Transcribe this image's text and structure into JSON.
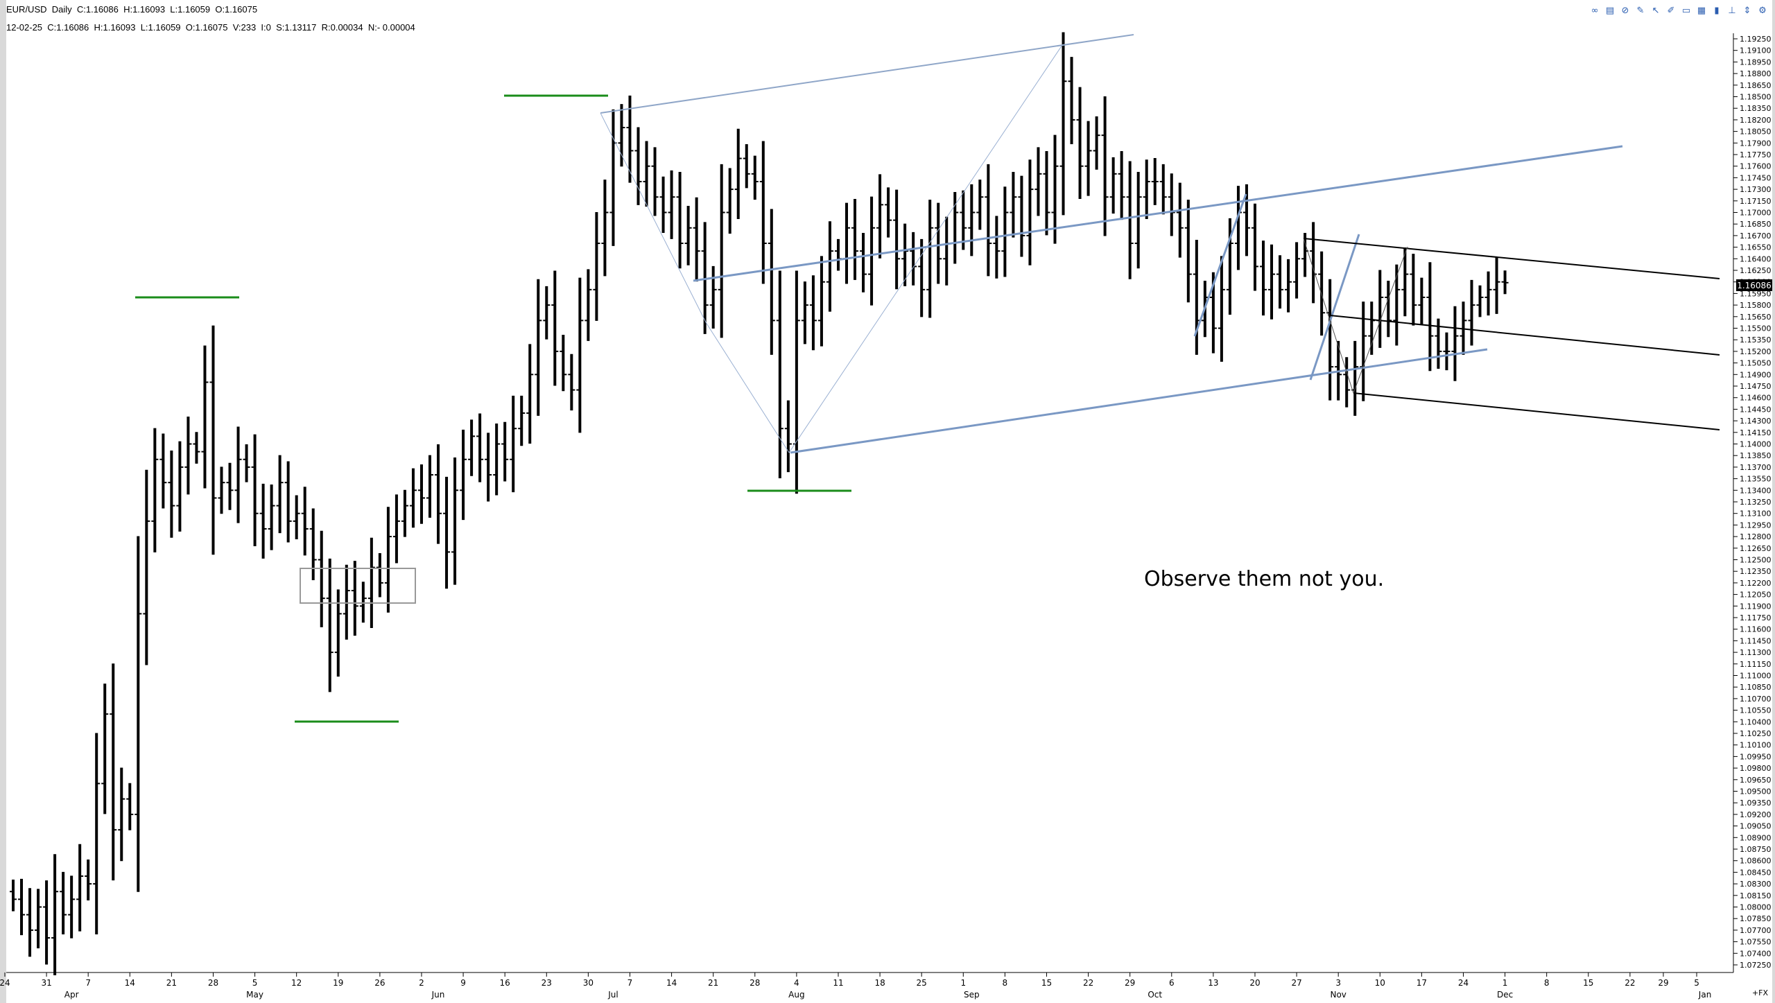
{
  "header": {
    "line1": "EUR/USD  Daily  C:1.16086  H:1.16093  L:1.16059  O:1.16075",
    "line2": "12-02-25  C:1.16086  H:1.16093  L:1.16059  O:1.16075  V:233  I:0  S:1.13117  R:0.00034  N:- 0.00004"
  },
  "toolbar": {
    "icons": [
      "link-icon",
      "chart-icon",
      "cancel-icon",
      "drawing-icon",
      "cursor-icon",
      "pen-icon",
      "box-icon",
      "grid-icon",
      "trash-icon",
      "pin-icon",
      "arrows-icon",
      "settings-icon"
    ]
  },
  "annotation": {
    "text": "Observe them not you."
  },
  "last_price_label": "1.16086",
  "fx_label": "+FX",
  "chart_data": {
    "type": "ohlc",
    "symbol": "EUR/USD",
    "timeframe": "Daily",
    "ylim": [
      1.0725,
      1.1925
    ],
    "y_tick_labels": [
      "1.19250",
      "1.19100",
      "1.18950",
      "1.18800",
      "1.18650",
      "1.18500",
      "1.18350",
      "1.18200",
      "1.18050",
      "1.17900",
      "1.17750",
      "1.17600",
      "1.17450",
      "1.17300",
      "1.17150",
      "1.17000",
      "1.16850",
      "1.16700",
      "1.16550",
      "1.16400",
      "1.16250",
      "1.16100",
      "1.15950",
      "1.15800",
      "1.15650",
      "1.15500",
      "1.15350",
      "1.15200",
      "1.15050",
      "1.14900",
      "1.14750",
      "1.14600",
      "1.14450",
      "1.14300",
      "1.14150",
      "1.14000",
      "1.13850",
      "1.13700",
      "1.13550",
      "1.13400",
      "1.13250",
      "1.13100",
      "1.12950",
      "1.12800",
      "1.12650",
      "1.12500",
      "1.12350",
      "1.12200",
      "1.12050",
      "1.11900",
      "1.11750",
      "1.11600",
      "1.11450",
      "1.11300",
      "1.11150",
      "1.11000",
      "1.10850",
      "1.10700",
      "1.10550",
      "1.10400",
      "1.10250",
      "1.10100",
      "1.09950",
      "1.09800",
      "1.09650",
      "1.09500",
      "1.09350",
      "1.09200",
      "1.09050",
      "1.08900",
      "1.08750",
      "1.08600",
      "1.08450",
      "1.08300",
      "1.08150",
      "1.08000",
      "1.07850",
      "1.07700",
      "1.07550",
      "1.07400",
      "1.07250"
    ],
    "x_ticks": [
      {
        "label": "24",
        "i": -1
      },
      {
        "label": "31",
        "i": 4
      },
      {
        "label": "7",
        "i": 9
      },
      {
        "label": "14",
        "i": 14
      },
      {
        "label": "21",
        "i": 19
      },
      {
        "label": "28",
        "i": 24
      },
      {
        "label": "5",
        "i": 29
      },
      {
        "label": "12",
        "i": 34
      },
      {
        "label": "19",
        "i": 39
      },
      {
        "label": "26",
        "i": 44
      },
      {
        "label": "2",
        "i": 49
      },
      {
        "label": "9",
        "i": 54
      },
      {
        "label": "16",
        "i": 59
      },
      {
        "label": "23",
        "i": 64
      },
      {
        "label": "30",
        "i": 69
      },
      {
        "label": "7",
        "i": 74
      },
      {
        "label": "14",
        "i": 79
      },
      {
        "label": "21",
        "i": 84
      },
      {
        "label": "28",
        "i": 89
      },
      {
        "label": "4",
        "i": 94
      },
      {
        "label": "11",
        "i": 99
      },
      {
        "label": "18",
        "i": 104
      },
      {
        "label": "25",
        "i": 109
      },
      {
        "label": "1",
        "i": 114
      },
      {
        "label": "8",
        "i": 119
      },
      {
        "label": "15",
        "i": 124
      },
      {
        "label": "22",
        "i": 129
      },
      {
        "label": "29",
        "i": 134
      },
      {
        "label": "6",
        "i": 139
      },
      {
        "label": "13",
        "i": 144
      },
      {
        "label": "20",
        "i": 149
      },
      {
        "label": "27",
        "i": 154
      },
      {
        "label": "3",
        "i": 159
      },
      {
        "label": "10",
        "i": 164
      },
      {
        "label": "17",
        "i": 169
      },
      {
        "label": "24",
        "i": 174
      },
      {
        "label": "1",
        "i": 179
      },
      {
        "label": "8",
        "i": 184
      },
      {
        "label": "15",
        "i": 189
      },
      {
        "label": "22",
        "i": 194
      },
      {
        "label": "29",
        "i": 198
      },
      {
        "label": "5",
        "i": 202
      }
    ],
    "month_labels": [
      {
        "label": "Apr",
        "i": 7
      },
      {
        "label": "May",
        "i": 29
      },
      {
        "label": "Jun",
        "i": 51
      },
      {
        "label": "Jul",
        "i": 72
      },
      {
        "label": "Aug",
        "i": 94
      },
      {
        "label": "Sep",
        "i": 115
      },
      {
        "label": "Oct",
        "i": 137
      },
      {
        "label": "Nov",
        "i": 159
      },
      {
        "label": "Dec",
        "i": 179
      },
      {
        "label": "Jan",
        "i": 203
      }
    ],
    "closes": [
      1.081,
      1.079,
      1.077,
      1.08,
      1.076,
      1.082,
      1.079,
      1.081,
      1.084,
      1.083,
      1.096,
      1.105,
      1.09,
      1.094,
      1.092,
      1.118,
      1.13,
      1.138,
      1.135,
      1.132,
      1.137,
      1.14,
      1.139,
      1.148,
      1.133,
      1.135,
      1.134,
      1.138,
      1.137,
      1.131,
      1.129,
      1.132,
      1.135,
      1.13,
      1.131,
      1.129,
      1.125,
      1.12,
      1.113,
      1.118,
      1.121,
      1.119,
      1.12,
      1.124,
      1.122,
      1.128,
      1.13,
      1.132,
      1.134,
      1.133,
      1.136,
      1.131,
      1.126,
      1.134,
      1.138,
      1.141,
      1.138,
      1.136,
      1.14,
      1.138,
      1.142,
      1.144,
      1.149,
      1.156,
      1.158,
      1.152,
      1.149,
      1.147,
      1.156,
      1.16,
      1.166,
      1.17,
      1.179,
      1.181,
      1.178,
      1.174,
      1.176,
      1.172,
      1.17,
      1.172,
      1.166,
      1.168,
      1.165,
      1.158,
      1.16,
      1.17,
      1.173,
      1.177,
      1.175,
      1.174,
      1.166,
      1.156,
      1.142,
      1.14,
      1.156,
      1.158,
      1.156,
      1.161,
      1.165,
      1.164,
      1.168,
      1.165,
      1.162,
      1.168,
      1.171,
      1.169,
      1.164,
      1.165,
      1.163,
      1.16,
      1.168,
      1.164,
      1.166,
      1.17,
      1.168,
      1.17,
      1.172,
      1.166,
      1.165,
      1.17,
      1.172,
      1.167,
      1.173,
      1.175,
      1.17,
      1.176,
      1.187,
      1.182,
      1.176,
      1.178,
      1.18,
      1.172,
      1.175,
      1.172,
      1.166,
      1.172,
      1.174,
      1.174,
      1.172,
      1.17,
      1.168,
      1.162,
      1.156,
      1.159,
      1.155,
      1.16,
      1.166,
      1.17,
      1.168,
      1.163,
      1.16,
      1.162,
      1.16,
      1.161,
      1.164,
      1.165,
      1.162,
      1.157,
      1.15,
      1.149,
      1.147,
      1.15,
      1.154,
      1.156,
      1.159,
      1.156,
      1.16,
      1.162,
      1.158,
      1.159,
      1.154,
      1.152,
      1.152,
      1.154,
      1.156,
      1.158,
      1.159,
      1.16,
      1.161,
      1.1609
    ]
  }
}
